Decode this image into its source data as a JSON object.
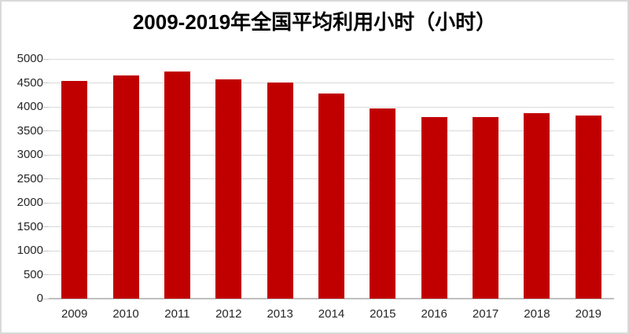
{
  "chart_data": {
    "type": "bar",
    "title": "2009-2019年全国平均利用小时（小时）",
    "xlabel": "",
    "ylabel": "",
    "categories": [
      "2009",
      "2010",
      "2011",
      "2012",
      "2013",
      "2014",
      "2015",
      "2016",
      "2017",
      "2018",
      "2019"
    ],
    "values": [
      4546,
      4650,
      4730,
      4572,
      4511,
      4286,
      3969,
      3785,
      3786,
      3862,
      3825
    ],
    "ylim": [
      0,
      5000
    ],
    "ytick_interval": 500,
    "yticks": [
      0,
      500,
      1000,
      1500,
      2000,
      2500,
      3000,
      3500,
      4000,
      4500,
      5000
    ],
    "grid": true,
    "legend": false,
    "colors": {
      "bar": "#c00000",
      "gridline": "#d9d9d9",
      "axis_line": "#bfbfbf",
      "tick": "#c6c6c6",
      "text": "#262626",
      "title_text": "#000000",
      "border": "#d9d9d9",
      "background": "#ffffff"
    }
  }
}
